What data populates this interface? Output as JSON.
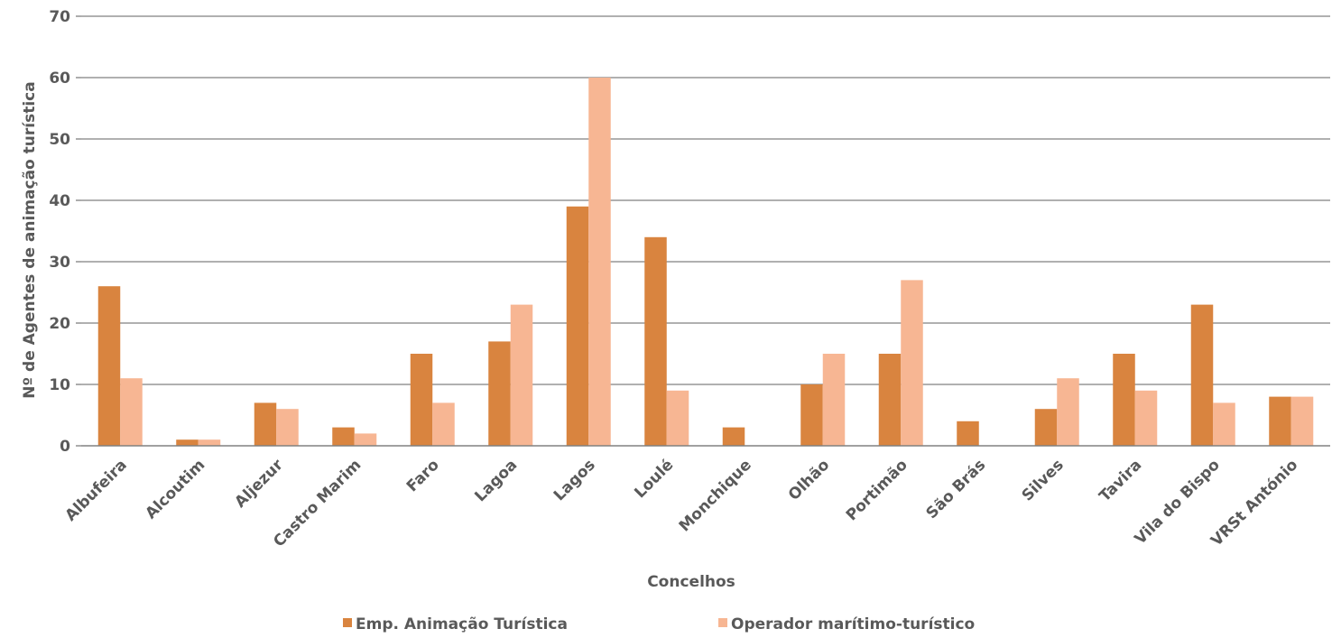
{
  "chart_data": {
    "type": "bar",
    "title": "",
    "xlabel": "Concelhos",
    "ylabel": "Nº de Agentes de animação turística",
    "ylim": [
      0,
      70
    ],
    "yticks": [
      0,
      10,
      20,
      30,
      40,
      50,
      60,
      70
    ],
    "grid": true,
    "legend_position": "bottom",
    "categories": [
      "Albufeira",
      "Alcoutim",
      "Aljezur",
      "Castro Marim",
      "Faro",
      "Lagoa",
      "Lagos",
      "Loulé",
      "Monchique",
      "Olhão",
      "Portimão",
      "São Brás",
      "Silves",
      "Tavira",
      "Vila do Bispo",
      "VRSt António"
    ],
    "series": [
      {
        "name": "Emp. Animação Turística",
        "color": "#D9843F",
        "values": [
          26,
          1,
          7,
          3,
          15,
          17,
          39,
          34,
          3,
          10,
          15,
          4,
          6,
          15,
          23,
          8
        ]
      },
      {
        "name": "Operador marítimo-turístico",
        "color": "#F7B693",
        "values": [
          11,
          1,
          6,
          2,
          7,
          23,
          60,
          9,
          0,
          15,
          27,
          0,
          11,
          9,
          7,
          8
        ]
      }
    ]
  }
}
